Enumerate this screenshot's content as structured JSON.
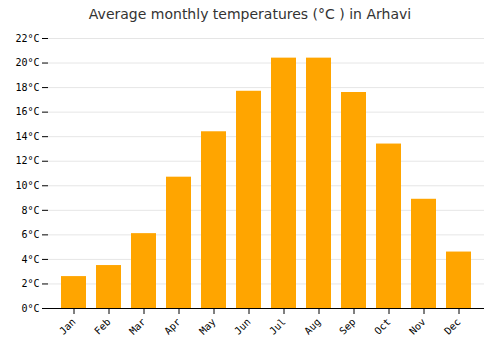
{
  "chart_data": {
    "type": "bar",
    "title": "Average monthly temperatures (°C ) in Arhavi",
    "categories": [
      "Jan",
      "Feb",
      "Mar",
      "Apr",
      "May",
      "Jun",
      "Jul",
      "Aug",
      "Sep",
      "Oct",
      "Nov",
      "Dec"
    ],
    "values": [
      2.6,
      3.5,
      6.1,
      10.7,
      14.4,
      17.7,
      20.4,
      20.4,
      17.6,
      13.4,
      8.9,
      4.6
    ],
    "color": "#FFA500",
    "ylim": [
      0,
      22
    ],
    "yticks": [
      {
        "value": 0,
        "label": "0°C"
      },
      {
        "value": 2,
        "label": "2°C"
      },
      {
        "value": 4,
        "label": "4°C"
      },
      {
        "value": 6,
        "label": "6°C"
      },
      {
        "value": 8,
        "label": "8°C"
      },
      {
        "value": 10,
        "label": "10°C"
      },
      {
        "value": 12,
        "label": "12°C"
      },
      {
        "value": 14,
        "label": "14°C"
      },
      {
        "value": 16,
        "label": "16°C"
      },
      {
        "value": 18,
        "label": "18°C"
      },
      {
        "value": 20,
        "label": "20°C"
      },
      {
        "value": 22,
        "label": "22°C"
      }
    ],
    "grid": true
  }
}
